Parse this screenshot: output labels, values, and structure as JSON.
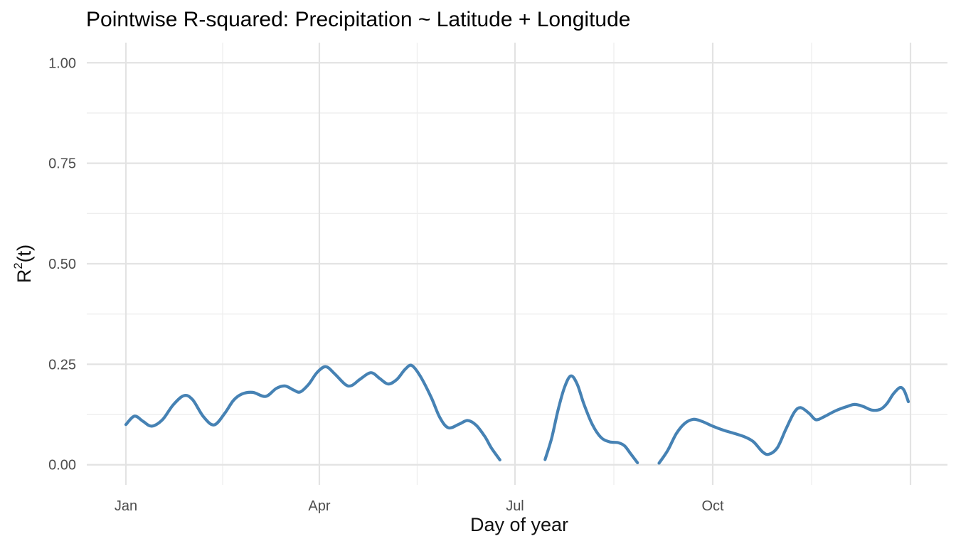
{
  "chart_data": {
    "type": "line",
    "title": "Pointwise R-squared: Precipitation ~ Latitude + Longitude",
    "xlabel": "Day of year",
    "ylabel": "R²(t)",
    "ylabel_parts": {
      "base": "R",
      "sup": "2",
      "rest": "(t)"
    },
    "legend": "none",
    "grid": "major and minor, light gray on white",
    "x_axis": {
      "range_days": [
        1,
        365
      ],
      "ticks": [
        {
          "day": 1,
          "label": "Jan"
        },
        {
          "day": 91,
          "label": "Apr"
        },
        {
          "day": 182,
          "label": "Jul"
        },
        {
          "day": 274,
          "label": "Oct"
        }
      ],
      "unlabeled_major_days": [
        366
      ],
      "minor_days": [
        46,
        136.5,
        228,
        320
      ]
    },
    "y_axis": {
      "range": [
        0,
        1
      ],
      "ticks": [
        {
          "value": 0,
          "label": "0.00"
        },
        {
          "value": 0.25,
          "label": "0.25"
        },
        {
          "value": 0.5,
          "label": "0.50"
        },
        {
          "value": 0.75,
          "label": "0.75"
        },
        {
          "value": 1,
          "label": "1.00"
        }
      ],
      "minor_values": [
        0.125,
        0.375,
        0.625,
        0.875
      ]
    },
    "series": [
      {
        "name": "Pointwise R-squared",
        "segments": [
          [
            [
              1,
              0.1
            ],
            [
              5,
              0.121
            ],
            [
              9,
              0.108
            ],
            [
              13,
              0.096
            ],
            [
              18,
              0.112
            ],
            [
              23,
              0.149
            ],
            [
              28,
              0.172
            ],
            [
              32,
              0.162
            ],
            [
              37,
              0.12
            ],
            [
              42,
              0.099
            ],
            [
              47,
              0.128
            ],
            [
              51,
              0.16
            ],
            [
              55,
              0.176
            ],
            [
              60,
              0.18
            ],
            [
              66,
              0.17
            ],
            [
              71,
              0.19
            ],
            [
              75,
              0.196
            ],
            [
              79,
              0.186
            ],
            [
              82,
              0.181
            ],
            [
              86,
              0.2
            ],
            [
              90,
              0.23
            ],
            [
              94,
              0.244
            ],
            [
              98,
              0.227
            ],
            [
              103,
              0.2
            ],
            [
              106,
              0.197
            ],
            [
              110,
              0.213
            ],
            [
              115,
              0.229
            ],
            [
              119,
              0.215
            ],
            [
              123,
              0.201
            ],
            [
              127,
              0.212
            ],
            [
              131,
              0.238
            ],
            [
              134,
              0.247
            ],
            [
              138,
              0.22
            ],
            [
              143,
              0.168
            ],
            [
              147,
              0.118
            ],
            [
              151,
              0.092
            ],
            [
              156,
              0.101
            ],
            [
              160,
              0.11
            ],
            [
              164,
              0.098
            ],
            [
              168,
              0.07
            ],
            [
              171,
              0.042
            ],
            [
              175,
              0.012
            ]
          ],
          [
            [
              196,
              0.013
            ],
            [
              199,
              0.065
            ],
            [
              202,
              0.135
            ],
            [
              205,
              0.192
            ],
            [
              208,
              0.221
            ],
            [
              211,
              0.2
            ],
            [
              214,
              0.152
            ],
            [
              218,
              0.1
            ],
            [
              222,
              0.068
            ],
            [
              226,
              0.057
            ],
            [
              230,
              0.055
            ],
            [
              233,
              0.047
            ],
            [
              236,
              0.026
            ],
            [
              239,
              0.005
            ]
          ],
          [
            [
              249,
              0.004
            ],
            [
              253,
              0.035
            ],
            [
              257,
              0.077
            ],
            [
              261,
              0.103
            ],
            [
              265,
              0.113
            ],
            [
              269,
              0.108
            ],
            [
              274,
              0.096
            ],
            [
              279,
              0.086
            ],
            [
              284,
              0.078
            ],
            [
              289,
              0.069
            ],
            [
              293,
              0.057
            ],
            [
              297,
              0.033
            ],
            [
              300,
              0.026
            ],
            [
              304,
              0.042
            ],
            [
              308,
              0.088
            ],
            [
              312,
              0.131
            ],
            [
              315,
              0.142
            ],
            [
              319,
              0.127
            ],
            [
              322,
              0.112
            ],
            [
              326,
              0.12
            ],
            [
              331,
              0.134
            ],
            [
              336,
              0.144
            ],
            [
              340,
              0.15
            ],
            [
              344,
              0.145
            ],
            [
              348,
              0.136
            ],
            [
              352,
              0.138
            ],
            [
              355,
              0.152
            ],
            [
              358,
              0.176
            ],
            [
              361,
              0.192
            ],
            [
              363,
              0.185
            ],
            [
              365,
              0.157
            ]
          ]
        ]
      }
    ],
    "styles": {
      "line_color": "#4682B4",
      "line_width": 4.2,
      "grid_major_color": "#E3E3E3",
      "grid_minor_color": "#EEEEEE",
      "tick_label_color": "#4D4D4D",
      "axis_title_color": "#111111",
      "title_color": "#000000",
      "background": "#FFFFFF"
    }
  }
}
